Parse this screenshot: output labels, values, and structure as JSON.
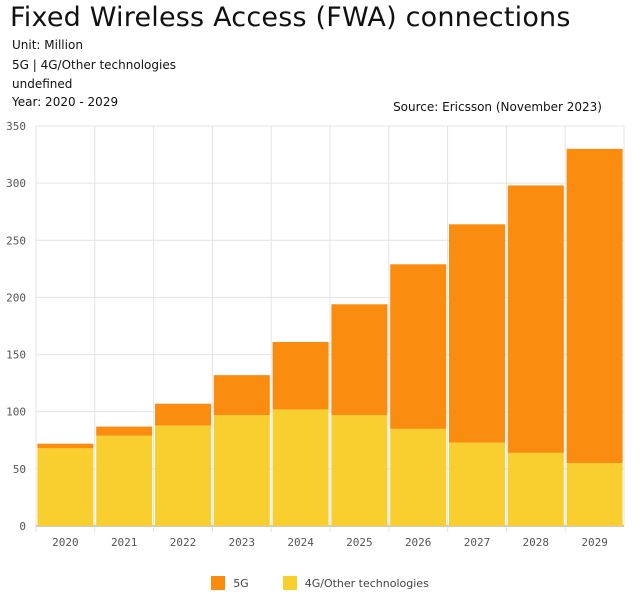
{
  "header": {
    "title": "Fixed Wireless Access (FWA) connections",
    "unit": "Unit: Million",
    "series_line": "5G | 4G/Other technologies",
    "extra_line": "undefined",
    "year_range": "Year: 2020 - 2029",
    "source": "Source: Ericsson (November 2023)"
  },
  "colors": {
    "5g": "#fa8c0f",
    "4g": "#f9cf2f",
    "grid": "#e4e4e4",
    "axis": "#999999"
  },
  "chart_data": {
    "type": "bar",
    "stacked": true,
    "categories": [
      "2020",
      "2021",
      "2022",
      "2023",
      "2024",
      "2025",
      "2026",
      "2027",
      "2028",
      "2029"
    ],
    "series": [
      {
        "name": "4G/Other technologies",
        "values": [
          68,
          79,
          88,
          97,
          102,
          97,
          85,
          73,
          64,
          55
        ]
      },
      {
        "name": "5G",
        "values": [
          4,
          8,
          19,
          35,
          59,
          97,
          144,
          191,
          234,
          275
        ]
      }
    ],
    "ylim": [
      0,
      350
    ],
    "yticks": [
      0,
      50,
      100,
      150,
      200,
      250,
      300,
      350
    ],
    "grid": true,
    "legend": {
      "placement": "bottom",
      "entries": [
        "5G",
        "4G/Other technologies"
      ]
    }
  }
}
